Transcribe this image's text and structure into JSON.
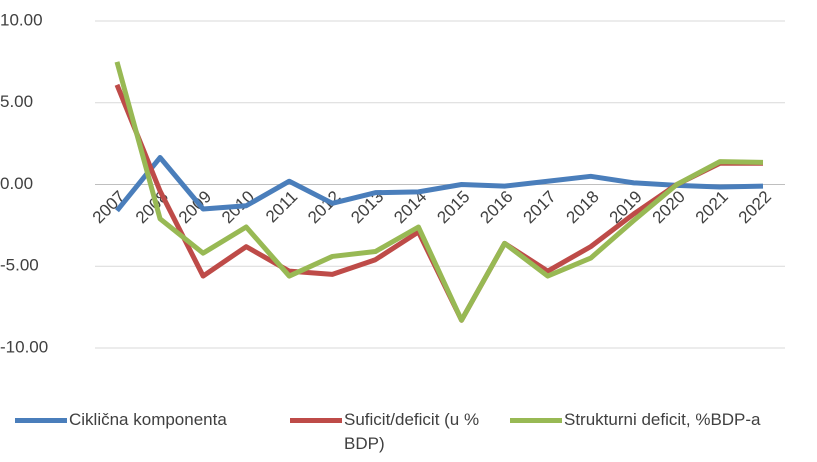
{
  "chart_data": {
    "type": "line",
    "categories": [
      "2007",
      "2008",
      "2009",
      "2010",
      "2011",
      "2012",
      "2013",
      "2014",
      "2015",
      "2016",
      "2017",
      "2018",
      "2019",
      "2020",
      "2021",
      "2022"
    ],
    "series": [
      {
        "name": "Ciklična komponenta",
        "color": "#4a7ebb",
        "values": [
          -1.6,
          1.65,
          -1.5,
          -1.3,
          0.2,
          -1.15,
          -0.5,
          -0.45,
          0,
          -0.1,
          0.2,
          0.5,
          0.1,
          -0.05,
          -0.15,
          -0.1
        ]
      },
      {
        "name": "Suficit/deficit (u % BDP)",
        "color": "#be4b48",
        "values": [
          6.1,
          -0.4,
          -5.6,
          -3.8,
          -5.3,
          -5.5,
          -4.6,
          -2.9,
          -8.3,
          -3.6,
          -5.3,
          -3.8,
          -1.8,
          0,
          1.3,
          1.3
        ]
      },
      {
        "name": "Strukturni deficit, %BDP-a",
        "color": "#98b954",
        "values": [
          7.5,
          -2.1,
          -4.2,
          -2.6,
          -5.6,
          -4.4,
          -4.1,
          -2.6,
          -8.3,
          -3.6,
          -5.6,
          -4.5,
          -2.2,
          0,
          1.4,
          1.35
        ]
      }
    ],
    "ylim": [
      -10,
      10
    ],
    "yticks": [
      {
        "value": -10,
        "label": "-10.00"
      },
      {
        "value": -5,
        "label": "-5.00"
      },
      {
        "value": 0,
        "label": "0.00"
      },
      {
        "value": 5,
        "label": "5.00"
      },
      {
        "value": 10,
        "label": "10.00"
      }
    ],
    "grid": true,
    "legend": "bottom"
  }
}
